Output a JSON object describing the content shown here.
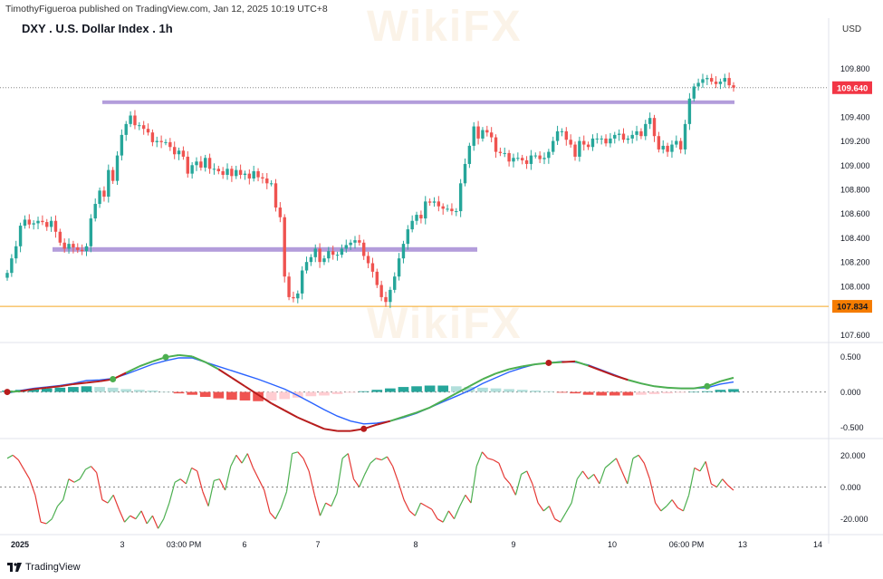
{
  "header": {
    "published_by": "TimothyFigueroa published on TradingView.com, Jan 12, 2025 10:19 UTC+8",
    "symbol_title": "DXY . U.S. Dollar Index . 1h",
    "currency_unit": "USD"
  },
  "footer": {
    "brand_label": "TradingView"
  },
  "watermark": {
    "text": "WikiFX"
  },
  "colors": {
    "up": "#26a69a",
    "down": "#ef5350",
    "level": "#b39ddb",
    "support": "#f5a623",
    "price_tag": "#f23645",
    "support_tag": "#f57c00",
    "macd": "#2962ff",
    "signal_up": "#4caf50",
    "signal_down": "#b71c1c",
    "hist_up": "#26a69a",
    "hist_up_weak": "#b2dfdb",
    "hist_down": "#ef5350",
    "hist_down_weak": "#ffcdd2",
    "osc_up": "#4caf50",
    "osc_down": "#e53935"
  },
  "chart_data": [
    {
      "type": "candlestick",
      "title": "DXY . U.S. Dollar Index . 1h",
      "y_axis_label": "USD",
      "ylim": [
        107.58,
        110.05
      ],
      "y_ticks": [
        "109.800",
        "109.400",
        "109.200",
        "109.000",
        "108.800",
        "108.600",
        "108.400",
        "108.200",
        "108.000",
        "107.600"
      ],
      "x_ticks": [
        "2025",
        "3",
        "03:00 PM",
        "6",
        "7",
        "8",
        "9",
        "10",
        "06:00 PM",
        "13",
        "14"
      ],
      "last_price_label": "109.640",
      "last_price": 109.64,
      "support_label": "107.834",
      "support_level": 107.834,
      "resistance_zone": 109.52,
      "support_zone": 108.3,
      "closes": [
        108.11,
        108.23,
        108.33,
        108.5,
        108.55,
        108.51,
        108.52,
        108.54,
        108.53,
        108.49,
        108.54,
        108.45,
        108.36,
        108.31,
        108.35,
        108.32,
        108.3,
        108.29,
        108.33,
        108.56,
        108.68,
        108.79,
        108.74,
        108.96,
        108.87,
        109.08,
        109.25,
        109.34,
        109.41,
        109.33,
        109.33,
        109.3,
        109.27,
        109.19,
        109.2,
        109.19,
        109.19,
        109.15,
        109.09,
        109.12,
        109.07,
        108.93,
        109.0,
        109.03,
        108.98,
        109.06,
        108.97,
        108.97,
        108.95,
        108.92,
        108.97,
        108.91,
        108.96,
        108.92,
        108.93,
        108.89,
        108.95,
        108.9,
        108.89,
        108.85,
        108.85,
        108.65,
        108.57,
        108.08,
        107.91,
        107.9,
        107.94,
        108.13,
        108.2,
        108.24,
        108.31,
        108.2,
        108.23,
        108.29,
        108.26,
        108.26,
        108.31,
        108.34,
        108.36,
        108.38,
        108.36,
        108.25,
        108.19,
        108.12,
        108.01,
        107.91,
        107.87,
        107.97,
        108.08,
        108.23,
        108.35,
        108.47,
        108.54,
        108.59,
        108.56,
        108.7,
        108.69,
        108.7,
        108.66,
        108.64,
        108.64,
        108.62,
        108.62,
        108.85,
        109.01,
        109.16,
        109.32,
        109.22,
        109.29,
        109.27,
        109.23,
        109.11,
        109.1,
        109.1,
        109.03,
        109.06,
        109.06,
        109.04,
        109.01,
        109.08,
        109.08,
        109.05,
        109.06,
        109.11,
        109.2,
        109.28,
        109.28,
        109.21,
        109.17,
        109.07,
        109.2,
        109.17,
        109.15,
        109.22,
        109.22,
        109.22,
        109.18,
        109.22,
        109.25,
        109.26,
        109.21,
        109.22,
        109.25,
        109.28,
        109.24,
        109.34,
        109.39,
        109.24,
        109.13,
        109.16,
        109.11,
        109.17,
        109.2,
        109.13,
        109.34,
        109.55,
        109.65,
        109.68,
        109.71,
        109.72,
        109.69,
        109.67,
        109.69,
        109.72,
        109.66,
        109.64
      ]
    },
    {
      "type": "line",
      "title": "MACD",
      "ylim": [
        -0.58,
        0.62
      ],
      "y_ticks": [
        "0.500",
        "0.000",
        "-0.500"
      ],
      "series": [
        {
          "role": "macd",
          "values": [
            -0.02,
            0.02,
            0.05,
            0.07,
            0.09,
            0.12,
            0.16,
            0.17,
            0.19,
            0.25,
            0.32,
            0.39,
            0.44,
            0.48,
            0.48,
            0.42,
            0.36,
            0.3,
            0.24,
            0.18,
            0.11,
            0.04,
            -0.05,
            -0.15,
            -0.25,
            -0.34,
            -0.41,
            -0.45,
            -0.44,
            -0.41,
            -0.36,
            -0.3,
            -0.22,
            -0.14,
            -0.06,
            0.02,
            0.12,
            0.2,
            0.28,
            0.34,
            0.39,
            0.41,
            0.43,
            0.42,
            0.38,
            0.31,
            0.24,
            0.17,
            0.12,
            0.08,
            0.06,
            0.05,
            0.05,
            0.06,
            0.11,
            0.14
          ]
        },
        {
          "role": "signal",
          "values": [
            0.0,
            0.01,
            0.04,
            0.06,
            0.08,
            0.11,
            0.13,
            0.15,
            0.18,
            0.27,
            0.36,
            0.43,
            0.49,
            0.52,
            0.5,
            0.42,
            0.32,
            0.2,
            0.08,
            -0.04,
            -0.16,
            -0.26,
            -0.36,
            -0.44,
            -0.52,
            -0.55,
            -0.55,
            -0.52,
            -0.46,
            -0.41,
            -0.35,
            -0.29,
            -0.22,
            -0.12,
            -0.02,
            0.08,
            0.18,
            0.26,
            0.32,
            0.36,
            0.39,
            0.41,
            0.42,
            0.43,
            0.37,
            0.3,
            0.23,
            0.17,
            0.12,
            0.08,
            0.06,
            0.05,
            0.05,
            0.08,
            0.15,
            0.2
          ]
        }
      ],
      "histogram": [
        0.02,
        0.03,
        0.04,
        0.05,
        0.06,
        0.07,
        0.08,
        0.07,
        0.06,
        0.04,
        0.03,
        0.02,
        0.0,
        -0.02,
        -0.04,
        -0.07,
        -0.09,
        -0.11,
        -0.12,
        -0.13,
        -0.12,
        -0.1,
        -0.08,
        -0.06,
        -0.05,
        -0.03,
        -0.01,
        0.01,
        0.03,
        0.05,
        0.07,
        0.08,
        0.09,
        0.09,
        0.08,
        0.07,
        0.06,
        0.05,
        0.04,
        0.03,
        0.02,
        0.01,
        -0.01,
        -0.02,
        -0.04,
        -0.05,
        -0.05,
        -0.05,
        -0.04,
        -0.03,
        -0.02,
        -0.01,
        0.0,
        0.01,
        0.03,
        0.04
      ],
      "cross_points": [
        0,
        8,
        12,
        27,
        41,
        53
      ]
    },
    {
      "type": "line",
      "title": "Oscillator",
      "ylim": [
        -27,
        27
      ],
      "y_ticks": [
        "20.000",
        "0.000",
        "-20.000"
      ],
      "values": [
        18,
        20,
        17,
        11,
        5,
        -5,
        -22,
        -23,
        -20,
        -12,
        -8,
        5,
        3,
        5,
        11,
        13,
        9,
        -8,
        -10,
        -5,
        -14,
        -22,
        -18,
        -20,
        -15,
        -23,
        -18,
        -26,
        -20,
        -10,
        3,
        5,
        2,
        12,
        10,
        -3,
        -12,
        4,
        5,
        -2,
        13,
        20,
        15,
        21,
        12,
        5,
        -2,
        -16,
        -20,
        -13,
        -3,
        21,
        22,
        18,
        10,
        -5,
        -18,
        -10,
        -12,
        -4,
        18,
        21,
        5,
        0,
        8,
        15,
        18,
        17,
        19,
        13,
        3,
        -8,
        -15,
        -18,
        -10,
        -12,
        -14,
        -20,
        -22,
        -15,
        -20,
        -12,
        -5,
        -10,
        13,
        22,
        18,
        17,
        15,
        6,
        2,
        -5,
        8,
        10,
        2,
        -10,
        -15,
        -12,
        -20,
        -22,
        -16,
        -10,
        5,
        10,
        5,
        8,
        2,
        12,
        15,
        18,
        10,
        2,
        18,
        20,
        15,
        5,
        -10,
        -15,
        -12,
        -8,
        -13,
        -15,
        -5,
        12,
        10,
        16,
        2,
        0,
        5,
        1,
        -2
      ]
    }
  ]
}
